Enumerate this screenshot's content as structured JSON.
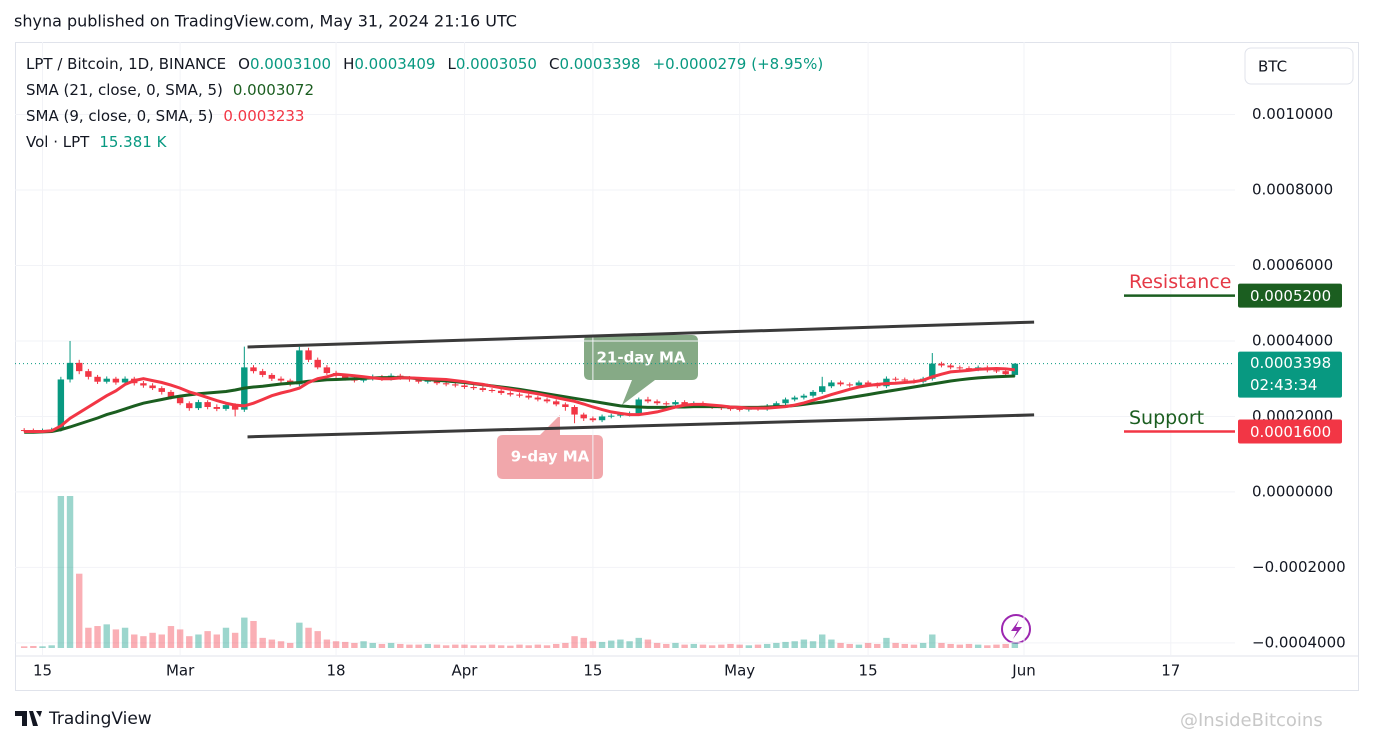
{
  "header": {
    "byline": "shyna published on TradingView.com, May 31, 2024 21:16 UTC",
    "currency_button": "BTC",
    "logo": "TradingView",
    "watermark": "@InsideBitcoins"
  },
  "chart_data": {
    "type": "candlestick",
    "legend": {
      "symbol": "LPT / Bitcoin, 1D, BINANCE",
      "ohlc": [
        {
          "key": "O",
          "value": 0.00031,
          "label": "0.0003100"
        },
        {
          "key": "H",
          "value": 0.0003409,
          "label": "0.0003409"
        },
        {
          "key": "L",
          "value": 0.000305,
          "label": "0.0003050"
        },
        {
          "key": "C",
          "value": 0.0003398,
          "label": "0.0003398"
        }
      ],
      "change": {
        "value": 2.79e-05,
        "label": "+0.0000279"
      },
      "change_pct": {
        "value": 8.95,
        "label": "(+8.95%)"
      },
      "volume": {
        "name": "Vol · LPT",
        "value": 15.381,
        "label": "15.381 K"
      }
    },
    "xlim": [
      -1,
      132
    ],
    "xticks": [
      {
        "value": 2,
        "label": "15"
      },
      {
        "value": 17,
        "label": "Mar"
      },
      {
        "value": 34,
        "label": "18"
      },
      {
        "value": 48,
        "label": "Apr"
      },
      {
        "value": 62,
        "label": "15"
      },
      {
        "value": 78,
        "label": "May"
      },
      {
        "value": 92,
        "label": "15"
      },
      {
        "value": 109,
        "label": "Jun"
      },
      {
        "value": 125,
        "label": "17"
      }
    ],
    "ylim": [
      -0.000432,
      0.001192
    ],
    "yticks": [
      {
        "value": 0.001,
        "label": "0.0010000"
      },
      {
        "value": 0.0008,
        "label": "0.0008000"
      },
      {
        "value": 0.0006,
        "label": "0.0006000"
      },
      {
        "value": 0.0004,
        "label": "0.0004000"
      },
      {
        "value": 0.0002,
        "label": "0.0002000"
      },
      {
        "value": 0,
        "label": "0.0000000"
      },
      {
        "value": -0.0002,
        "label": "−0.0002000"
      },
      {
        "value": -0.0004,
        "label": "−0.0004000"
      }
    ],
    "grid": true,
    "up_color": "#089981",
    "down_color": "#f23645",
    "x": [
      0,
      1,
      2,
      3,
      4,
      5,
      6,
      7,
      8,
      9,
      10,
      11,
      12,
      13,
      14,
      15,
      16,
      17,
      18,
      19,
      20,
      21,
      22,
      23,
      24,
      25,
      26,
      27,
      28,
      29,
      30,
      31,
      32,
      33,
      34,
      35,
      36,
      37,
      38,
      39,
      40,
      41,
      42,
      43,
      44,
      45,
      46,
      47,
      48,
      49,
      50,
      51,
      52,
      53,
      54,
      55,
      56,
      57,
      58,
      59,
      60,
      61,
      62,
      63,
      64,
      65,
      66,
      67,
      68,
      69,
      70,
      71,
      72,
      73,
      74,
      75,
      76,
      77,
      78,
      79,
      80,
      81,
      82,
      83,
      84,
      85,
      86,
      87,
      88,
      89,
      90,
      91,
      92,
      93,
      94,
      95,
      96,
      97,
      98,
      99,
      100,
      101,
      102,
      103,
      104,
      105,
      106,
      107,
      108
    ],
    "open": [
      0.000164,
      0.000163,
      0.000162,
      0.000163,
      0.000165,
      0.000298,
      0.000342,
      0.00032,
      0.000305,
      0.000292,
      0.0003,
      0.00029,
      0.0003,
      0.000288,
      0.000282,
      0.000275,
      0.000265,
      0.00025,
      0.000235,
      0.000222,
      0.000238,
      0.000225,
      0.00022,
      0.00023,
      0.000218,
      0.00033,
      0.00032,
      0.00031,
      0.0003,
      0.000295,
      0.000285,
      0.000375,
      0.00035,
      0.00033,
      0.000315,
      0.000308,
      0.0003,
      0.000295,
      0.0003,
      0.000305,
      0.0003,
      0.000308,
      0.000302,
      0.000298,
      0.000292,
      0.000296,
      0.000288,
      0.000285,
      0.000282,
      0.000278,
      0.000275,
      0.00027,
      0.000268,
      0.000262,
      0.000258,
      0.000255,
      0.00025,
      0.000245,
      0.00024,
      0.000232,
      0.000225,
      0.000205,
      0.000195,
      0.00019,
      0.0002,
      0.000202,
      0.000205,
      0.000208,
      0.000245,
      0.00024,
      0.000235,
      0.000232,
      0.000238,
      0.00023,
      0.000235,
      0.000228,
      0.000225,
      0.000222,
      0.00022,
      0.000218,
      0.000222,
      0.00022,
      0.000228,
      0.000235,
      0.000245,
      0.00025,
      0.000255,
      0.000265,
      0.00028,
      0.00029,
      0.000285,
      0.000282,
      0.00029,
      0.000285,
      0.00028,
      0.0003,
      0.000298,
      0.000295,
      0.000292,
      0.0003,
      0.00034,
      0.000335,
      0.00033,
      0.000328,
      0.000325,
      0.00033,
      0.000322,
      0.00032,
      0.00031
    ],
    "high": [
      0.000169,
      0.000168,
      0.000168,
      0.00017,
      0.000305,
      0.0004,
      0.00035,
      0.000326,
      0.00031,
      0.000306,
      0.000305,
      0.000306,
      0.000305,
      0.000294,
      0.000288,
      0.00028,
      0.00027,
      0.000256,
      0.00024,
      0.000244,
      0.000243,
      0.000232,
      0.000236,
      0.000235,
      0.000385,
      0.000336,
      0.000326,
      0.000315,
      0.000306,
      0.0003,
      0.000385,
      0.000382,
      0.000356,
      0.000336,
      0.000321,
      0.000313,
      0.000306,
      0.000306,
      0.000311,
      0.00031,
      0.000314,
      0.000313,
      0.000307,
      0.000303,
      0.000301,
      0.0003,
      0.000293,
      0.00029,
      0.000287,
      0.000283,
      0.00028,
      0.000275,
      0.000273,
      0.000267,
      0.000263,
      0.00026,
      0.000255,
      0.00025,
      0.000245,
      0.000237,
      0.00023,
      0.00021,
      0.0002,
      0.000205,
      0.000207,
      0.00021,
      0.000213,
      0.00025,
      0.000252,
      0.000245,
      0.00024,
      0.000243,
      0.000243,
      0.00024,
      0.00024,
      0.000233,
      0.00023,
      0.000227,
      0.000225,
      0.000227,
      0.000227,
      0.000233,
      0.00024,
      0.00025,
      0.000255,
      0.00026,
      0.00027,
      0.000305,
      0.000296,
      0.000295,
      0.00029,
      0.000295,
      0.000295,
      0.00029,
      0.000306,
      0.000305,
      0.000303,
      0.0003,
      0.000305,
      0.000368,
      0.000345,
      0.00034,
      0.000335,
      0.000333,
      0.000335,
      0.000335,
      0.000327,
      0.000325,
      0.0003409
    ],
    "low": [
      0.000158,
      0.000157,
      0.000157,
      0.000158,
      0.00016,
      0.00029,
      0.000312,
      0.000298,
      0.000286,
      0.000287,
      0.000284,
      0.000285,
      0.000282,
      0.000276,
      0.00027,
      0.000258,
      0.000245,
      0.00023,
      0.000215,
      0.000217,
      0.000219,
      0.000214,
      0.000215,
      0.0002,
      0.000212,
      0.000314,
      0.000304,
      0.000294,
      0.000289,
      0.00028,
      0.00028,
      0.000344,
      0.000325,
      0.00031,
      0.000302,
      0.000295,
      0.00029,
      0.00029,
      0.000295,
      0.000294,
      0.000295,
      0.000297,
      0.000292,
      0.000287,
      0.000287,
      0.000283,
      0.00028,
      0.000277,
      0.000273,
      0.00027,
      0.000265,
      0.000263,
      0.000257,
      0.000253,
      0.00025,
      0.000245,
      0.00024,
      0.000235,
      0.000227,
      0.000215,
      0.000182,
      0.000188,
      0.000185,
      0.000185,
      0.000195,
      0.000197,
      0.0002,
      0.000203,
      0.000235,
      0.00023,
      0.000227,
      0.000227,
      0.000225,
      0.000225,
      0.000223,
      0.00022,
      0.000217,
      0.000215,
      0.000213,
      0.000213,
      0.000215,
      0.000215,
      0.000223,
      0.00023,
      0.00024,
      0.000245,
      0.00025,
      0.00026,
      0.000275,
      0.00028,
      0.000277,
      0.000277,
      0.00028,
      0.000275,
      0.000275,
      0.000293,
      0.00029,
      0.000287,
      0.000287,
      0.000295,
      0.00033,
      0.000325,
      0.000323,
      0.00032,
      0.00032,
      0.000317,
      0.000315,
      0.000306,
      0.000305
    ],
    "close": [
      0.000163,
      0.000162,
      0.000163,
      0.000165,
      0.000298,
      0.000342,
      0.00032,
      0.000305,
      0.000292,
      0.0003,
      0.00029,
      0.0003,
      0.000288,
      0.000282,
      0.000275,
      0.000265,
      0.00025,
      0.000235,
      0.000222,
      0.000238,
      0.000225,
      0.00022,
      0.00023,
      0.000218,
      0.00033,
      0.00032,
      0.00031,
      0.0003,
      0.000295,
      0.000285,
      0.000375,
      0.00035,
      0.00033,
      0.000315,
      0.000308,
      0.0003,
      0.000295,
      0.0003,
      0.000305,
      0.0003,
      0.000308,
      0.000302,
      0.000298,
      0.000292,
      0.000296,
      0.000288,
      0.000285,
      0.000282,
      0.000278,
      0.000275,
      0.00027,
      0.000268,
      0.000262,
      0.000258,
      0.000255,
      0.00025,
      0.000245,
      0.00024,
      0.000232,
      0.000225,
      0.000205,
      0.000195,
      0.00019,
      0.0002,
      0.000202,
      0.000205,
      0.000208,
      0.000245,
      0.00024,
      0.000235,
      0.000232,
      0.000238,
      0.00023,
      0.000235,
      0.000228,
      0.000225,
      0.000222,
      0.00022,
      0.000218,
      0.000222,
      0.00022,
      0.000228,
      0.000235,
      0.000245,
      0.00025,
      0.000255,
      0.000265,
      0.00028,
      0.00029,
      0.000285,
      0.000282,
      0.00029,
      0.000285,
      0.00028,
      0.0003,
      0.000298,
      0.000295,
      0.000292,
      0.0003,
      0.00034,
      0.000335,
      0.00033,
      0.000328,
      0.000325,
      0.00033,
      0.000322,
      0.00032,
      0.0003119,
      0.0003398
    ],
    "volume": [
      5,
      6,
      5,
      8,
      450,
      450,
      220,
      60,
      65,
      70,
      55,
      60,
      40,
      35,
      45,
      40,
      65,
      55,
      35,
      40,
      50,
      40,
      60,
      45,
      90,
      80,
      30,
      25,
      20,
      15,
      75,
      60,
      50,
      25,
      20,
      18,
      15,
      20,
      15,
      12,
      15,
      12,
      10,
      10,
      12,
      10,
      8,
      10,
      10,
      8,
      8,
      10,
      8,
      7,
      10,
      8,
      10,
      8,
      12,
      15,
      35,
      30,
      20,
      18,
      22,
      25,
      20,
      30,
      25,
      15,
      12,
      15,
      10,
      12,
      10,
      8,
      10,
      12,
      10,
      8,
      10,
      12,
      15,
      18,
      20,
      25,
      20,
      40,
      25,
      15,
      12,
      10,
      15,
      12,
      30,
      15,
      12,
      10,
      15,
      40,
      15,
      12,
      10,
      12,
      10,
      8,
      10,
      12,
      15.381
    ],
    "volume_lim": [
      0,
      450
    ],
    "series": [
      {
        "name": "SMA (21, close, 0, SMA, 5)",
        "color": "#1b5e20",
        "legend_value": {
          "value": 0.0003072,
          "label": "0.0003072"
        },
        "values": [
          0.000158,
          0.000158,
          0.000159,
          0.00016,
          0.000165,
          0.000172,
          0.00018,
          0.000188,
          0.000196,
          0.000205,
          0.000212,
          0.00022,
          0.000228,
          0.000235,
          0.00024,
          0.000245,
          0.00025,
          0.000254,
          0.000257,
          0.00026,
          0.000262,
          0.000264,
          0.000266,
          0.00027,
          0.000275,
          0.000278,
          0.00028,
          0.000283,
          0.000286,
          0.000288,
          0.00029,
          0.000293,
          0.000295,
          0.000297,
          0.000298,
          0.000299,
          0.0003,
          0.000301,
          0.000302,
          0.000303,
          0.000303,
          0.000303,
          0.000302,
          0.0003,
          0.000298,
          0.000296,
          0.000294,
          0.000292,
          0.00029,
          0.000287,
          0.000284,
          0.000281,
          0.000278,
          0.000275,
          0.000272,
          0.000268,
          0.000264,
          0.00026,
          0.000256,
          0.000252,
          0.000248,
          0.000244,
          0.00024,
          0.000236,
          0.000232,
          0.000228,
          0.000226,
          0.000225,
          0.000224,
          0.000224,
          0.000224,
          0.000225,
          0.000225,
          0.000226,
          0.000226,
          0.000226,
          0.000226,
          0.000225,
          0.000224,
          0.000224,
          0.000224,
          0.000225,
          0.000226,
          0.000227,
          0.000229,
          0.000232,
          0.000235,
          0.000238,
          0.000242,
          0.000246,
          0.00025,
          0.000254,
          0.000258,
          0.000262,
          0.000266,
          0.00027,
          0.000274,
          0.000278,
          0.000282,
          0.000286,
          0.00029,
          0.000294,
          0.000297,
          0.0003,
          0.000302,
          0.000304,
          0.000305,
          0.000306,
          0.0003072
        ]
      },
      {
        "name": "SMA (9, close, 0, SMA, 5)",
        "color": "#f23645",
        "legend_value": {
          "value": 0.0003233,
          "label": "0.0003233"
        },
        "values": [
          0.00016,
          0.00016,
          0.00016,
          0.000162,
          0.000175,
          0.000195,
          0.00021,
          0.000225,
          0.00024,
          0.000255,
          0.000268,
          0.000285,
          0.000295,
          0.0003,
          0.000295,
          0.00029,
          0.000283,
          0.000275,
          0.000265,
          0.000258,
          0.00025,
          0.000242,
          0.000235,
          0.00023,
          0.000228,
          0.000235,
          0.000245,
          0.000255,
          0.000262,
          0.000268,
          0.000275,
          0.00029,
          0.0003,
          0.000305,
          0.000312,
          0.00031,
          0.000308,
          0.000305,
          0.000302,
          0.0003,
          0.0003,
          0.000302,
          0.000302,
          0.000301,
          0.0003,
          0.000299,
          0.000298,
          0.000295,
          0.000292,
          0.000288,
          0.000285,
          0.00028,
          0.000276,
          0.000272,
          0.000268,
          0.000264,
          0.00026,
          0.000255,
          0.00025,
          0.000245,
          0.00024,
          0.000233,
          0.000225,
          0.000218,
          0.000212,
          0.000208,
          0.000205,
          0.000205,
          0.000208,
          0.000212,
          0.000218,
          0.000225,
          0.00023,
          0.000232,
          0.000232,
          0.00023,
          0.000228,
          0.000225,
          0.000224,
          0.000222,
          0.000222,
          0.000222,
          0.000224,
          0.000226,
          0.00023,
          0.000236,
          0.000243,
          0.00025,
          0.000258,
          0.000265,
          0.000272,
          0.000278,
          0.000282,
          0.000285,
          0.000287,
          0.000288,
          0.00029,
          0.000292,
          0.000296,
          0.000305,
          0.000312,
          0.000318,
          0.00032,
          0.000322,
          0.000325,
          0.000326,
          0.000327,
          0.000326,
          0.0003233
        ]
      }
    ],
    "channel": [
      {
        "x": [
          24.35,
          110.1
        ],
        "y": [
          0.000384,
          0.00045
        ]
      },
      {
        "x": [
          24.35,
          110.1
        ],
        "y": [
          0.000146,
          0.000204
        ]
      }
    ],
    "levels": [
      {
        "label": "Resistance",
        "value": 0.00052,
        "value_label": "0.0005200",
        "text_color": "#e53946",
        "line_color": "#1b5e20"
      },
      {
        "label": "Support",
        "value": 0.00016,
        "value_label": "0.0001600",
        "text_color": "#1b5e20",
        "line_color": "#f23645"
      }
    ],
    "last_price": {
      "value": 0.0003398,
      "label": "0.0003398",
      "countdown": "02:43:34",
      "color": "#089981"
    },
    "annotations": [
      "21-day MA",
      "9-day MA"
    ]
  }
}
